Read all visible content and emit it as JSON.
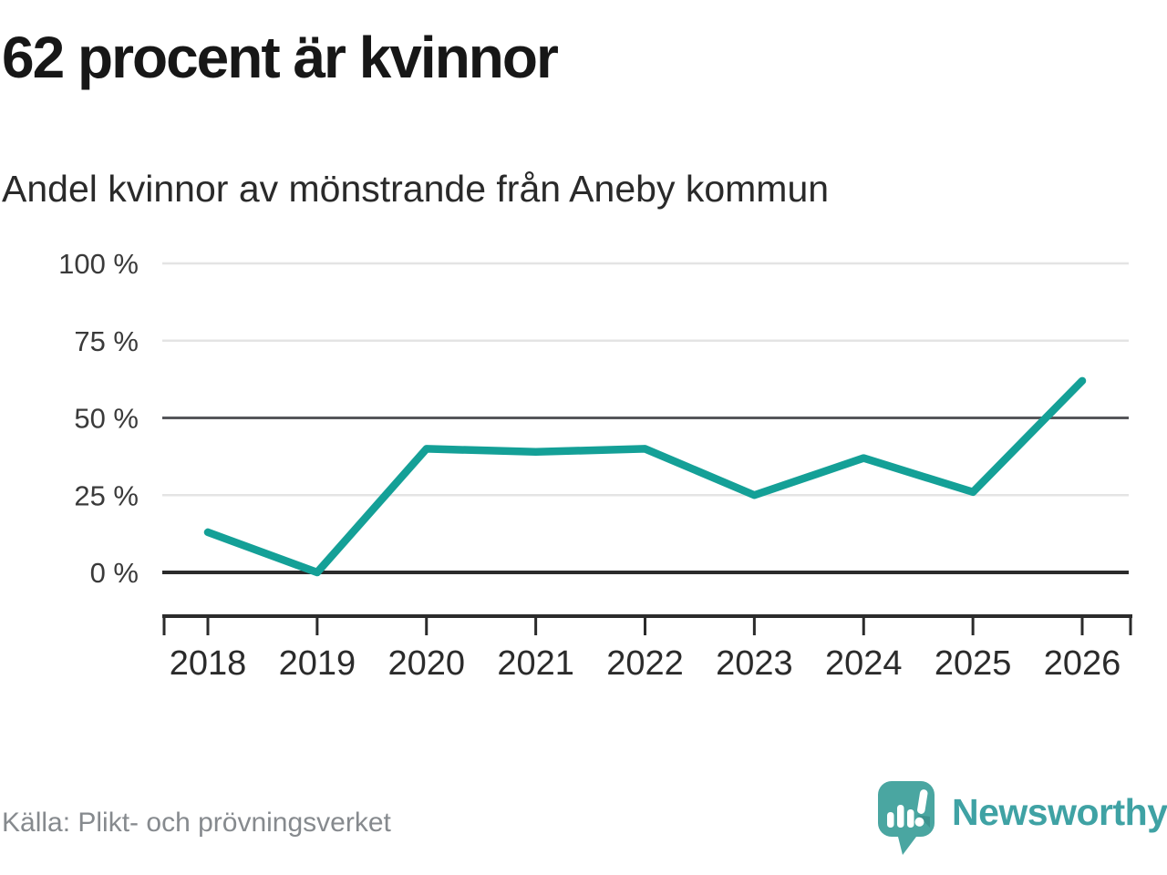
{
  "header": {
    "title": "62 procent är kvinnor",
    "subtitle": "Andel kvinnor av mönstrande från Aneby kommun"
  },
  "footer": {
    "source": "Källa: Plikt- och prövningsverket",
    "brand": "Newsworthy"
  },
  "colors": {
    "line": "#14a097",
    "brand_icon": "#4aa6a1",
    "brand_text": "#3fa2a4",
    "grid_light": "#e4e4e4",
    "grid_mid": "#55565a",
    "axis_dark": "#2b2b2b"
  },
  "chart_data": {
    "type": "line",
    "title": "62 procent är kvinnor",
    "subtitle": "Andel kvinnor av mönstrande från Aneby kommun",
    "x": [
      "2018",
      "2019",
      "2020",
      "2021",
      "2022",
      "2023",
      "2024",
      "2025",
      "2026"
    ],
    "series": [
      {
        "name": "Andel kvinnor av mönstrande",
        "values": [
          13,
          0,
          40,
          39,
          40,
          25,
          37,
          26,
          62
        ]
      }
    ],
    "unit": "%",
    "ylim": [
      0,
      100
    ],
    "yticks": [
      0,
      25,
      50,
      75,
      100
    ],
    "ytick_labels": [
      "0 %",
      "25 %",
      "50 %",
      "75 %",
      "100 %"
    ],
    "emphasized_gridlines": [
      0,
      50
    ],
    "grid": "horizontal-only",
    "legend": "none",
    "source": "Källa: Plikt- och prövningsverket"
  }
}
